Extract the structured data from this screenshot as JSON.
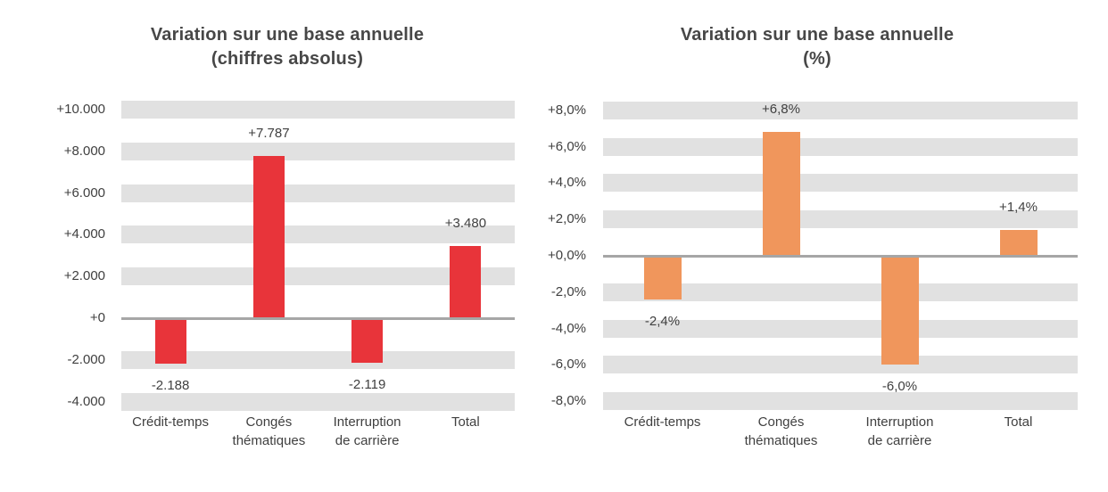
{
  "chart_data": [
    {
      "type": "bar",
      "title": "Variation sur une base annuelle",
      "subtitle": "(chiffres absolus)",
      "categories": [
        "Crédit-temps",
        "Congés thématiques",
        "Interruption de carrière",
        "Total"
      ],
      "category_lines": [
        [
          "Crédit-temps"
        ],
        [
          "Congés",
          "thématiques"
        ],
        [
          "Interruption",
          "de carrière"
        ],
        [
          "Total"
        ]
      ],
      "values": [
        -2188,
        7787,
        -2119,
        3480
      ],
      "value_labels": [
        "-2.188",
        "+7.787",
        "-2.119",
        "+3.480"
      ],
      "ticks": [
        {
          "value": 10000,
          "label": "+10.000"
        },
        {
          "value": 8000,
          "label": "+8.000"
        },
        {
          "value": 6000,
          "label": "+6.000"
        },
        {
          "value": 4000,
          "label": "+4.000"
        },
        {
          "value": 2000,
          "label": "+2.000"
        },
        {
          "value": 0,
          "label": "+0"
        },
        {
          "value": -2000,
          "label": "-2.000"
        },
        {
          "value": -4000,
          "label": "-4.000"
        }
      ],
      "ylim": [
        -4000,
        10000
      ],
      "ylabel": "",
      "xlabel": "",
      "legend": "none",
      "grid": "horizontal-thick-bands",
      "bar_color": "#e8343a",
      "gridline_color": "#e1e1e1",
      "axis_line_color": "#a6a6a6",
      "text_color": "#404040"
    },
    {
      "type": "bar",
      "title": "Variation sur une base annuelle",
      "subtitle": "(%)",
      "categories": [
        "Crédit-temps",
        "Congés thématiques",
        "Interruption de carrière",
        "Total"
      ],
      "category_lines": [
        [
          "Crédit-temps"
        ],
        [
          "Congés",
          "thématiques"
        ],
        [
          "Interruption",
          "de carrière"
        ],
        [
          "Total"
        ]
      ],
      "values": [
        -2.4,
        6.8,
        -6.0,
        1.4
      ],
      "value_labels": [
        "-2,4%",
        "+6,8%",
        "-6,0%",
        "+1,4%"
      ],
      "ticks": [
        {
          "value": 8,
          "label": "+8,0%"
        },
        {
          "value": 6,
          "label": "+6,0%"
        },
        {
          "value": 4,
          "label": "+4,0%"
        },
        {
          "value": 2,
          "label": "+2,0%"
        },
        {
          "value": 0,
          "label": "+0,0%"
        },
        {
          "value": -2,
          "label": "-2,0%"
        },
        {
          "value": -4,
          "label": "-4,0%"
        },
        {
          "value": -6,
          "label": "-6,0%"
        },
        {
          "value": -8,
          "label": "-8,0%"
        }
      ],
      "ylim": [
        -8,
        8
      ],
      "ylabel": "",
      "xlabel": "",
      "legend": "none",
      "grid": "horizontal-thick-bands",
      "bar_color": "#f0965c",
      "gridline_color": "#e1e1e1",
      "axis_line_color": "#a6a6a6",
      "text_color": "#404040"
    }
  ]
}
